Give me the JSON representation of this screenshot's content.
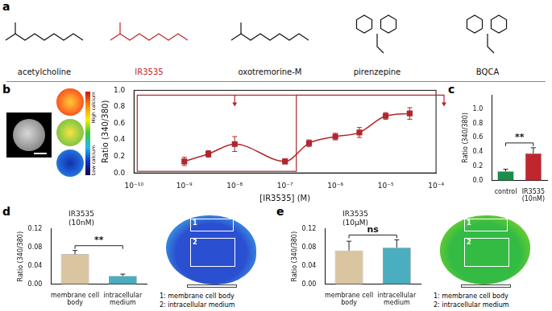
{
  "panels": [
    "a",
    "b",
    "c",
    "d",
    "e"
  ],
  "structures": [
    {
      "name": "acetylcholine",
      "color": "#111111"
    },
    {
      "name": "IR3535",
      "color": "#c0272d"
    },
    {
      "name": "oxotremorine-M",
      "color": "#111111"
    },
    {
      "name": "pirenzepine",
      "color": "#111111"
    },
    {
      "name": "BQCA",
      "color": "#111111"
    }
  ],
  "calcium_scale": {
    "high": "High calcium",
    "low": "Low calcium"
  },
  "cell_images": [
    {
      "panel": "d",
      "regions": [
        "1: membrane cell body",
        "2: intracellular medium"
      ]
    },
    {
      "panel": "e",
      "regions": [
        "1: membrane cell body",
        "2: intracellular medium"
      ]
    }
  ],
  "chart_data": [
    {
      "panel": "b",
      "type": "line",
      "xlabel": "[IR3535] (M)",
      "ylabel": "Ratio (340/380)",
      "log": "x",
      "x": [
        1e-09,
        3e-09,
        1e-08,
        1e-07,
        3e-07,
        1e-06,
        3e-06,
        1e-05,
        3e-05
      ],
      "values": [
        0.14,
        0.23,
        0.35,
        0.14,
        0.36,
        0.44,
        0.49,
        0.69,
        0.72
      ],
      "errors": [
        0.05,
        0.04,
        0.09,
        0.03,
        0.04,
        0.04,
        0.06,
        0.04,
        0.07
      ],
      "color": "#b0272d",
      "marker": "square",
      "xlim": [
        1e-10,
        0.0001
      ],
      "xticks": [
        {
          "value": 1e-10,
          "label": "10⁻¹⁰"
        },
        {
          "value": 1e-09,
          "label": "10⁻⁹"
        },
        {
          "value": 1e-08,
          "label": "10⁻⁸"
        },
        {
          "value": 1e-07,
          "label": "10⁻⁷"
        },
        {
          "value": 1e-06,
          "label": "10⁻⁶"
        },
        {
          "value": 1e-05,
          "label": "10⁻⁵"
        },
        {
          "value": 0.0001,
          "label": "10⁻⁴"
        }
      ],
      "ylim": [
        0,
        1.0
      ],
      "yticks": [
        {
          "value": 0,
          "label": "0.0"
        },
        {
          "value": 0.2,
          "label": "0.2"
        },
        {
          "value": 0.4,
          "label": "0.4"
        },
        {
          "value": 0.6,
          "label": "0.6"
        },
        {
          "value": 0.8,
          "label": "0.8"
        },
        {
          "value": 1.0,
          "label": "1.0"
        }
      ],
      "grid": false
    },
    {
      "panel": "c",
      "type": "bar",
      "ylabel": "Ratio (340/380)",
      "categories": [
        "control",
        "IR3535 (10nM)"
      ],
      "values": [
        0.13,
        0.38
      ],
      "errors": [
        0.03,
        0.08
      ],
      "colors": [
        "#1e8c4a",
        "#c0272d"
      ],
      "ylim": [
        0,
        1.2
      ],
      "yticks": [
        {
          "value": 0,
          "label": "0.0"
        },
        {
          "value": 0.2,
          "label": "0.2"
        },
        {
          "value": 0.4,
          "label": "0.4"
        },
        {
          "value": 0.6,
          "label": "0.6"
        },
        {
          "value": 0.8,
          "label": "0.8"
        },
        {
          "value": 1.0,
          "label": "1.0"
        }
      ],
      "annotations": [
        "**"
      ],
      "grid": false
    },
    {
      "panel": "d",
      "type": "bar",
      "title": "IR3535 (10nM)",
      "ylabel": "Ratio (340/380)",
      "categories": [
        "membrane cell body",
        "intracellular medium"
      ],
      "values": [
        0.065,
        0.018
      ],
      "errors": [
        0.008,
        0.004
      ],
      "colors": [
        "#d9c6a1",
        "#4aaec0"
      ],
      "ylim": [
        0,
        0.12
      ],
      "yticks": [
        {
          "value": 0,
          "label": "0.00"
        },
        {
          "value": 0.04,
          "label": "0.04"
        },
        {
          "value": 0.08,
          "label": "0.08"
        },
        {
          "value": 0.12,
          "label": "0.12"
        }
      ],
      "annotations": [
        "**"
      ],
      "grid": false
    },
    {
      "panel": "e",
      "type": "bar",
      "title": "IR3535 (10μM)",
      "ylabel": "Ratio (340/380)",
      "categories": [
        "membrane cell body",
        "intracellular medium"
      ],
      "values": [
        0.073,
        0.079
      ],
      "errors": [
        0.02,
        0.017
      ],
      "colors": [
        "#d9c6a1",
        "#4aaec0"
      ],
      "ylim": [
        0,
        0.12
      ],
      "yticks": [
        {
          "value": 0,
          "label": "0.00"
        },
        {
          "value": 0.04,
          "label": "0.04"
        },
        {
          "value": 0.08,
          "label": "0.08"
        },
        {
          "value": 0.12,
          "label": "0.12"
        }
      ],
      "annotations": [
        "ns"
      ],
      "grid": false
    }
  ]
}
